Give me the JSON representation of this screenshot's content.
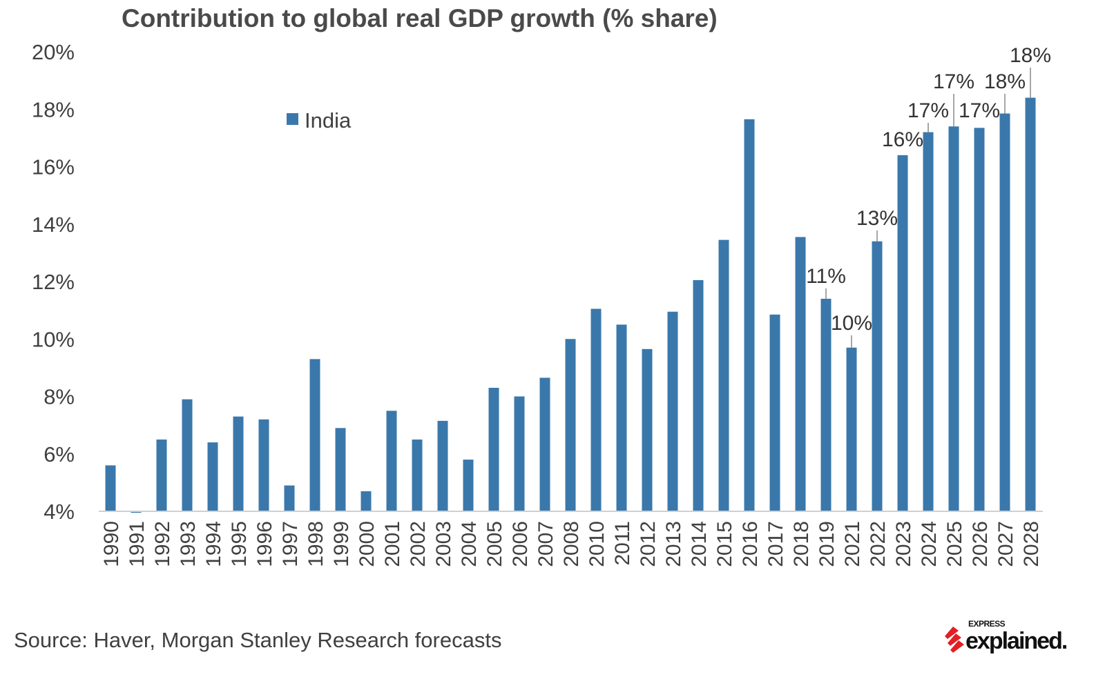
{
  "chart_data": {
    "type": "bar",
    "title": "Contribution to global real GDP growth (% share)",
    "xlabel": "",
    "ylabel": "",
    "ylim": [
      4,
      20
    ],
    "yticks": [
      "4%",
      "6%",
      "8%",
      "10%",
      "12%",
      "14%",
      "16%",
      "18%",
      "20%"
    ],
    "ytick_values": [
      4,
      6,
      8,
      10,
      12,
      14,
      16,
      18,
      20
    ],
    "grid": false,
    "legend_position": "top-left",
    "color": "#3a78ab",
    "categories": [
      "1990",
      "1991",
      "1992",
      "1993",
      "1994",
      "1995",
      "1996",
      "1997",
      "1998",
      "1999",
      "2000",
      "2001",
      "2002",
      "2003",
      "2004",
      "2005",
      "2006",
      "2007",
      "2008",
      "2010",
      "2011",
      "2012",
      "2013",
      "2014",
      "2015",
      "2016",
      "2017",
      "2018",
      "2019",
      "2021",
      "2022",
      "2023",
      "2024",
      "2025",
      "2026",
      "2027",
      "2028"
    ],
    "series": [
      {
        "name": "India",
        "values": [
          5.6,
          3.95,
          6.5,
          7.9,
          6.4,
          7.3,
          7.2,
          4.9,
          9.3,
          6.9,
          4.7,
          7.5,
          6.5,
          7.15,
          5.8,
          8.3,
          8.0,
          8.65,
          10.0,
          11.05,
          10.5,
          9.65,
          10.95,
          12.05,
          13.45,
          17.65,
          10.85,
          13.55,
          11.4,
          9.7,
          13.4,
          16.4,
          17.2,
          17.4,
          17.35,
          17.85,
          18.4
        ]
      }
    ],
    "data_labels": [
      {
        "category": "2019",
        "text": "11%"
      },
      {
        "category": "2021",
        "text": "10%"
      },
      {
        "category": "2022",
        "text": "13%"
      },
      {
        "category": "2023",
        "text": "16%"
      },
      {
        "category": "2024",
        "text": "17%"
      },
      {
        "category": "2025",
        "text": "17%"
      },
      {
        "category": "2026",
        "text": "17%"
      },
      {
        "category": "2027",
        "text": "18%"
      },
      {
        "category": "2028",
        "text": "18%"
      }
    ]
  },
  "source": "Source: Haver, Morgan Stanley Research forecasts",
  "logo": {
    "top": "EXPRESS",
    "main": "explained."
  }
}
